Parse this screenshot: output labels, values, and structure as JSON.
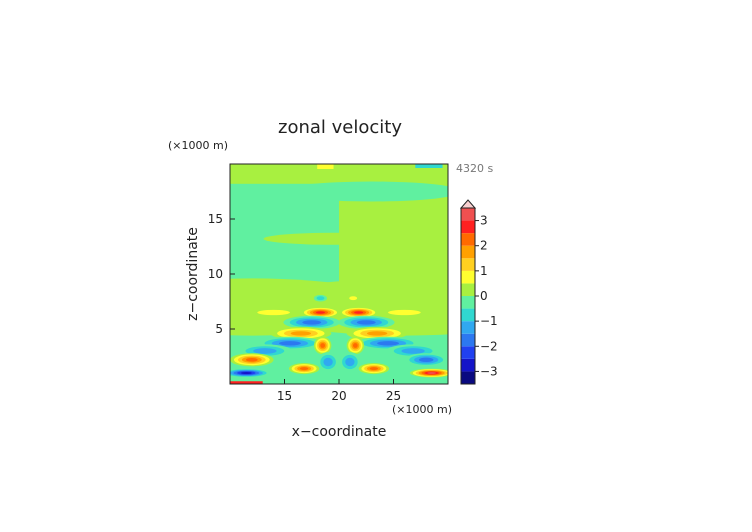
{
  "chart_data": {
    "type": "heatmap",
    "title": "zonal velocity",
    "xlabel": "x−coordinate",
    "ylabel": "z−coordinate",
    "x_unit": "(×1000 m)",
    "y_unit": "(×1000 m)",
    "time_label": "4320 s",
    "xlim": [
      10,
      30
    ],
    "ylim": [
      0,
      20
    ],
    "x_ticks": [
      15,
      20,
      25
    ],
    "y_ticks": [
      5,
      10,
      15
    ],
    "colorbar": {
      "levels": [
        -3.5,
        -3,
        -2.5,
        -2,
        -1.5,
        -1,
        -0.5,
        0,
        0.5,
        1,
        1.5,
        2,
        2.5,
        3,
        3.5
      ],
      "colors": [
        "#0a0a80",
        "#1414c8",
        "#2040f0",
        "#2c78f0",
        "#30a8f0",
        "#30d8d0",
        "#60f0a0",
        "#a8f040",
        "#ffff30",
        "#ffd020",
        "#ffa000",
        "#ff6a00",
        "#ff2020",
        "#f05050",
        "#f8a0a0"
      ],
      "tick_labels": [
        "3",
        "2",
        "1",
        "0",
        "−1",
        "−2",
        "−3"
      ],
      "tick_values": [
        3,
        2,
        1,
        0,
        -1,
        -2,
        -3
      ],
      "extend_max": true
    }
  }
}
